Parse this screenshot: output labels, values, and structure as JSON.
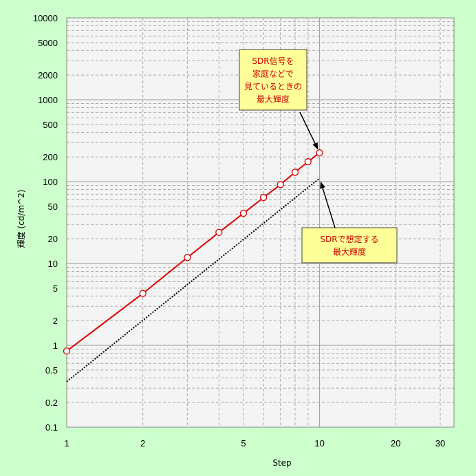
{
  "chart_data": {
    "type": "line",
    "xlabel": "Step",
    "ylabel": "輝度 (cd/m^2)",
    "xscale": "log",
    "yscale": "log",
    "xlim": [
      1,
      34
    ],
    "ylim": [
      0.1,
      10000
    ],
    "x_ticks": [
      1,
      2,
      5,
      10,
      20,
      30
    ],
    "x_tick_labels": [
      "1",
      "2",
      "5",
      "10",
      "20",
      "30"
    ],
    "y_ticks": [
      0.1,
      0.2,
      0.5,
      1,
      2,
      5,
      10,
      20,
      50,
      100,
      200,
      500,
      1000,
      2000,
      5000,
      10000
    ],
    "y_tick_labels": [
      "0.1",
      "0.2",
      "0.5",
      "1",
      "2",
      "5",
      "10",
      "20",
      "50",
      "100",
      "200",
      "500",
      "1000",
      "2000",
      "5000",
      "10000"
    ],
    "grid": true,
    "series": [
      {
        "color": "#dd0000",
        "style": "solid-with-circle-markers",
        "x": [
          1,
          2,
          3,
          4,
          5,
          6,
          7,
          8,
          9,
          10
        ],
        "y": [
          0.85,
          4.3,
          11.8,
          24,
          41,
          64,
          92,
          130,
          175,
          225
        ]
      },
      {
        "color": "#000000",
        "style": "dotted",
        "x": [
          1,
          10
        ],
        "y": [
          0.36,
          110
        ]
      }
    ],
    "annotations": [
      {
        "lines": [
          "SDR信号を",
          "家庭などで",
          "見ているときの",
          "最大輝度"
        ],
        "color": "#cc0000",
        "box_color": "#ffff99",
        "points_to": [
          10,
          225
        ]
      },
      {
        "lines": [
          "SDRで想定する",
          "最大輝度"
        ],
        "color": "#cc0000",
        "box_color": "#ffff99",
        "points_to": [
          10,
          110
        ]
      }
    ]
  }
}
